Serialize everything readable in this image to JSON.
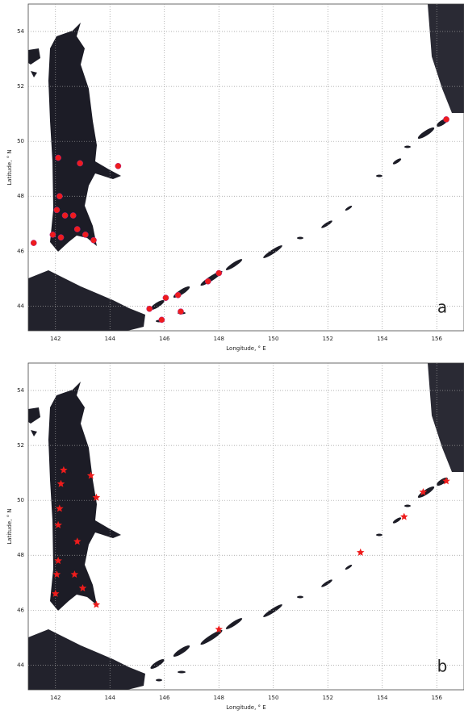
{
  "chart_data": [
    {
      "type": "scatter",
      "panel_label": "a",
      "x_label": "Longitude, ° E",
      "y_label": "Latitude, ° N",
      "marker": "circle",
      "color": "#ee1c1c",
      "grid": true,
      "xlim": [
        141,
        157
      ],
      "ylim": [
        43.1,
        55
      ],
      "xticks": [
        142,
        144,
        146,
        148,
        150,
        152,
        154,
        156
      ],
      "yticks": [
        44,
        46,
        48,
        50,
        52,
        54
      ],
      "x": [
        141.2,
        142.1,
        142.9,
        144.3,
        142.15,
        142.05,
        142.35,
        142.65,
        142.8,
        141.9,
        142.2,
        143.1,
        143.4,
        156.35,
        148,
        147.6,
        146.5,
        146.05,
        145.45,
        145.9,
        146.6
      ],
      "y": [
        46.3,
        49.4,
        49.2,
        49.1,
        48.0,
        47.5,
        47.3,
        47.3,
        46.8,
        46.6,
        46.5,
        46.6,
        46.4,
        50.8,
        45.2,
        44.9,
        44.4,
        44.3,
        43.9,
        43.5,
        43.8
      ]
    },
    {
      "type": "scatter",
      "panel_label": "b",
      "x_label": "Longitude, ° E",
      "y_label": "Latitude, ° N",
      "marker": "star",
      "color": "#ee1c1c",
      "grid": true,
      "xlim": [
        141,
        157
      ],
      "ylim": [
        43.1,
        55
      ],
      "xticks": [
        142,
        144,
        146,
        148,
        150,
        152,
        154,
        156
      ],
      "yticks": [
        44,
        46,
        48,
        50,
        52,
        54
      ],
      "x": [
        142.3,
        142.2,
        143.3,
        143.5,
        142.15,
        142.1,
        142.8,
        142.1,
        142.05,
        142.7,
        142.0,
        143.0,
        143.5,
        148.0,
        153.2,
        154.8,
        155.5,
        156.35
      ],
      "y": [
        51.1,
        50.6,
        50.9,
        50.1,
        49.7,
        49.1,
        48.5,
        47.8,
        47.3,
        47.3,
        46.6,
        46.8,
        46.2,
        45.3,
        48.1,
        49.4,
        50.3,
        50.7
      ]
    }
  ]
}
